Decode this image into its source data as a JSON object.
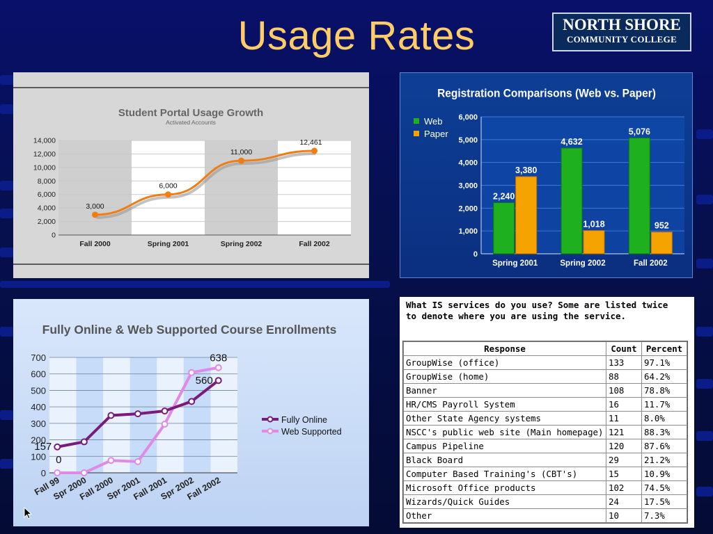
{
  "slide": {
    "title": "Usage Rates",
    "logo": {
      "line1": "NORTH SHORE",
      "line2": "COMMUNITY COLLEGE"
    }
  },
  "chart_data": [
    {
      "type": "line",
      "title": "Student Portal Usage Growth",
      "subtitle": "Activated Accounts",
      "categories": [
        "Fall 2000",
        "Spring 2001",
        "Spring 2002",
        "Fall 2002"
      ],
      "series": [
        {
          "values": [
            3000,
            6000,
            11000,
            12461
          ]
        }
      ],
      "data_labels": [
        "3,000",
        "6,000",
        "11,000",
        "12,461"
      ],
      "ylim": [
        0,
        14000
      ],
      "yticks": [
        "0",
        "2,000",
        "4,000",
        "6,000",
        "8,000",
        "10,000",
        "12,000",
        "14,000"
      ],
      "grid": true,
      "colors": {
        "line": "#f07c12",
        "plot": "#ffffff",
        "band": "#d5d5d5"
      }
    },
    {
      "type": "bar",
      "title": "Registration Comparisons (Web vs. Paper)",
      "categories": [
        "Spring 2001",
        "Spring 2002",
        "Fall 2002"
      ],
      "series": [
        {
          "name": "Web",
          "values": [
            2240,
            4632,
            5076
          ],
          "labels": [
            "2,240",
            "4,632",
            "5,076"
          ],
          "color": "#1eb01e"
        },
        {
          "name": "Paper",
          "values": [
            3380,
            1018,
            952
          ],
          "labels": [
            "3,380",
            "1,018",
            "952"
          ],
          "color": "#f5a300"
        }
      ],
      "ylim": [
        0,
        6000
      ],
      "yticks": [
        "0",
        "1,000",
        "2,000",
        "3,000",
        "4,000",
        "5,000",
        "6,000"
      ],
      "legend": "top-left",
      "grid": true
    },
    {
      "type": "line",
      "title": "Fully Online & Web Supported Course Enrollments",
      "categories": [
        "Fall 99",
        "Spr 2000",
        "Fall 2000",
        "Spr 2001",
        "Fall 2001",
        "Spr 2002",
        "Fall 2002"
      ],
      "series": [
        {
          "name": "Fully Online",
          "values": [
            157,
            188,
            348,
            358,
            375,
            433,
            560
          ],
          "color": "#7a1a7a"
        },
        {
          "name": "Web Supported",
          "values": [
            0,
            0,
            75,
            68,
            295,
            608,
            638
          ],
          "color": "#e08ae8"
        }
      ],
      "data_labels": [
        "157",
        "0",
        "560",
        "638"
      ],
      "ylim": [
        0,
        700
      ],
      "yticks": [
        "0",
        "100",
        "200",
        "300",
        "400",
        "500",
        "600",
        "700"
      ],
      "legend": "right",
      "grid": true
    }
  ],
  "survey": {
    "question_line1": "What IS services do you use? Some are listed twice",
    "question_line2": "to denote where you are using the service.",
    "headers": [
      "Response",
      "Count",
      "Percent"
    ],
    "rows": [
      [
        "GroupWise (office)",
        "133",
        "97.1%"
      ],
      [
        "GroupWise (home)",
        "88",
        "64.2%"
      ],
      [
        "Banner",
        "108",
        "78.8%"
      ],
      [
        "HR/CMS Payroll System",
        "16",
        "11.7%"
      ],
      [
        "Other State Agency systems",
        "11",
        "8.0%"
      ],
      [
        "NSCC's public web site (Main homepage)",
        "121",
        "88.3%"
      ],
      [
        "Campus Pipeline",
        "120",
        "87.6%"
      ],
      [
        "Black Board",
        "29",
        "21.2%"
      ],
      [
        "Computer Based Training's (CBT's)",
        "15",
        "10.9%"
      ],
      [
        "Microsoft Office products",
        "102",
        "74.5%"
      ],
      [
        "Wizards/Quick Guides",
        "24",
        "17.5%"
      ],
      [
        "Other",
        "10",
        "7.3%"
      ]
    ]
  }
}
